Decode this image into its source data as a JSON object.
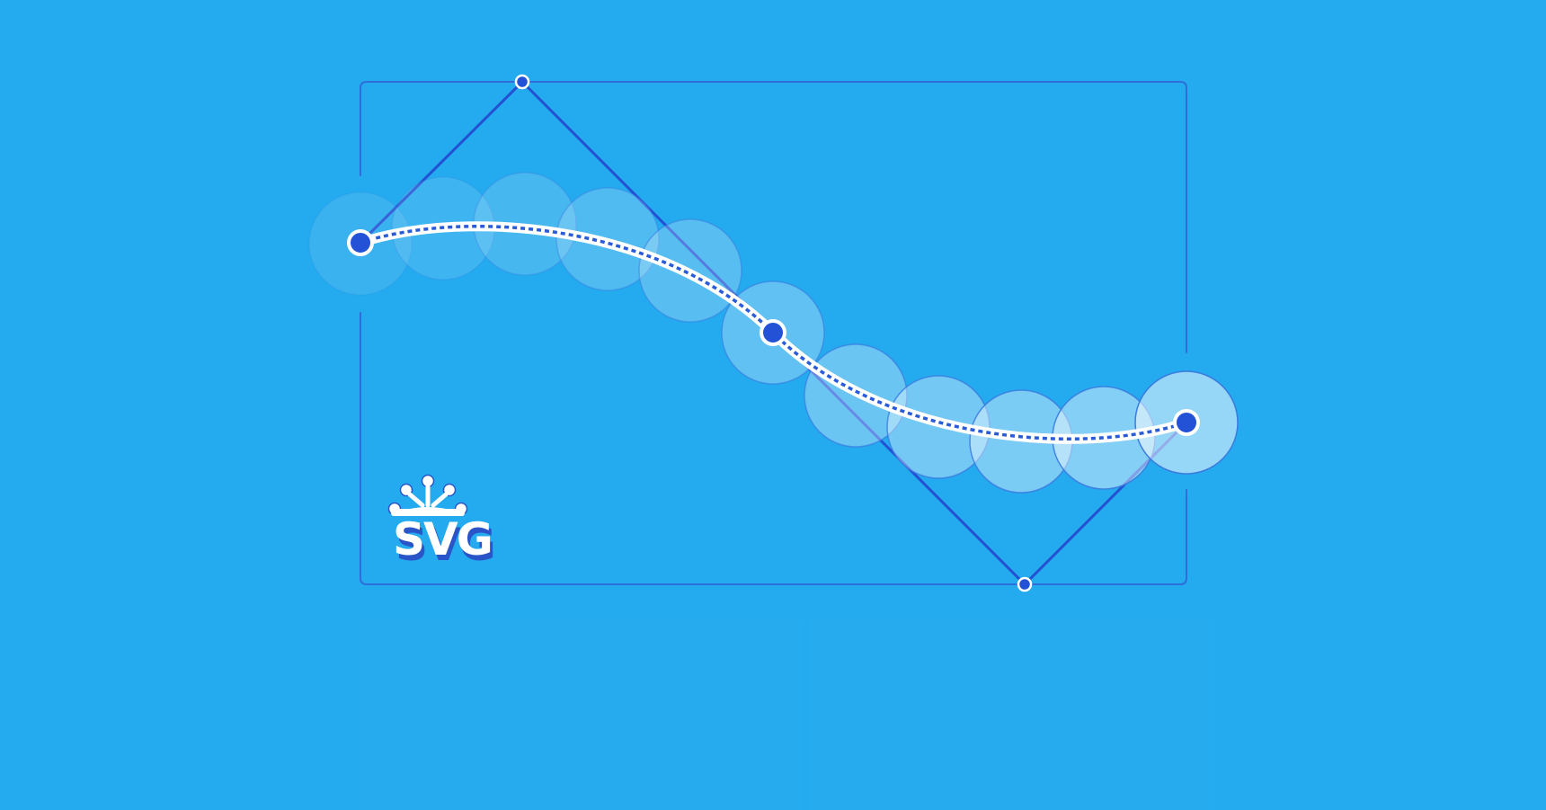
{
  "colors": {
    "background": "#24aaee",
    "frame_stroke": "#2f6ed9",
    "handle_line": "#2251d4",
    "point_fill": "#2452d6",
    "point_ring": "#ffffff",
    "curve": "#ffffff",
    "curve_dash": "#2a5bd8",
    "ghost_circle_fill": "#ffffff",
    "ghost_circle_stroke": "#3b7be0",
    "logo_fill": "#ffffff",
    "logo_shadow": "#2a55c8"
  },
  "logo": {
    "text": "SVG",
    "icon": "svg-logo-icon"
  },
  "illustration": {
    "type": "bezier-curve-with-control-handles",
    "anchor_points": 3,
    "control_points": 2,
    "ghost_circles": 11
  }
}
